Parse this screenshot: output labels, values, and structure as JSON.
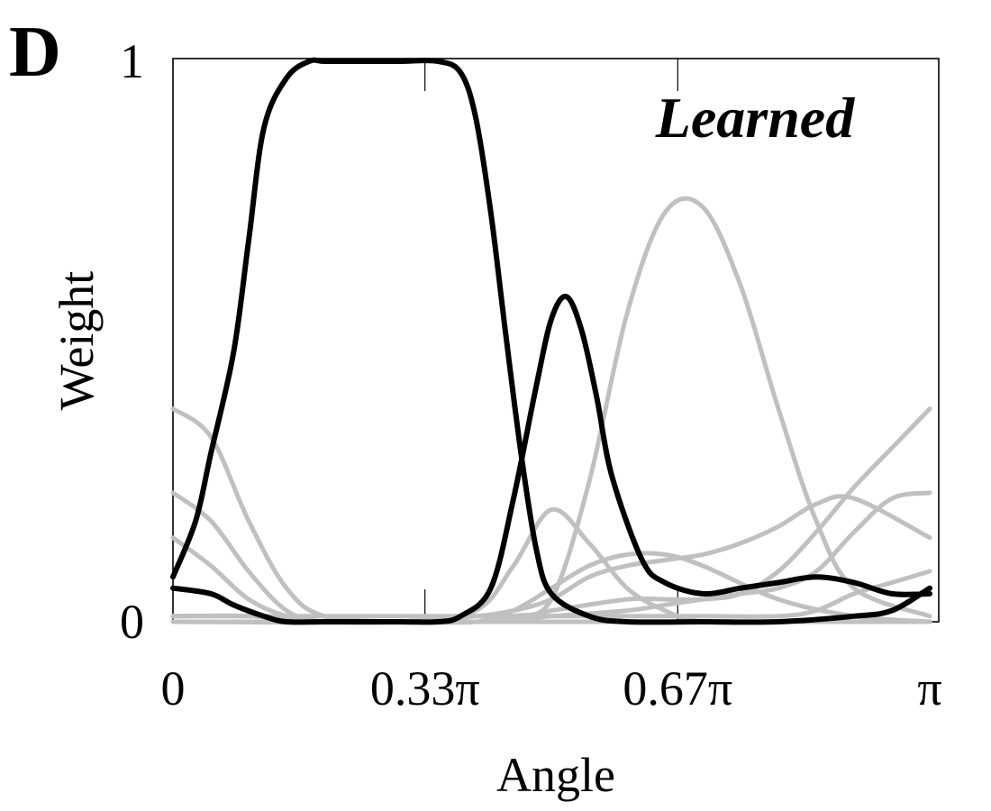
{
  "panel_label": "D",
  "chart_data": {
    "type": "line",
    "title": "Learned",
    "xlabel": "Angle",
    "ylabel": "Weight",
    "xlim": [
      0,
      1
    ],
    "ylim": [
      0,
      1
    ],
    "x_unit": "π",
    "xticks": [
      {
        "value": 0,
        "label": "0"
      },
      {
        "value": 0.333,
        "label": "0.33π"
      },
      {
        "value": 0.667,
        "label": "0.67π"
      },
      {
        "value": 1,
        "label": "π"
      }
    ],
    "yticks": [
      {
        "value": 0,
        "label": "0"
      },
      {
        "value": 1,
        "label": "1"
      }
    ],
    "grid": "vertical gridlines at x ticks",
    "colors": {
      "highlight": "#000000",
      "background": "#c0c0c0"
    },
    "series": [
      {
        "color": "#c0c0c0",
        "x": [
          0,
          0.05,
          0.1,
          0.15,
          0.2,
          0.3,
          0.4,
          0.5,
          0.6,
          0.7,
          0.8,
          0.9,
          1
        ],
        "y": [
          0.38,
          0.33,
          0.18,
          0.06,
          0.01,
          0.0,
          0.0,
          0.0,
          0.0,
          0.0,
          0.0,
          0.0,
          0.0
        ]
      },
      {
        "color": "#c0c0c0",
        "x": [
          0,
          0.05,
          0.1,
          0.15,
          0.2,
          0.3,
          0.4,
          0.5,
          0.6,
          0.7,
          0.8,
          0.9,
          1
        ],
        "y": [
          0.23,
          0.18,
          0.09,
          0.02,
          0.0,
          0.0,
          0.0,
          0.0,
          0.0,
          0.0,
          0.0,
          0.0,
          0.0
        ]
      },
      {
        "color": "#c0c0c0",
        "x": [
          0,
          0.05,
          0.1,
          0.15,
          0.2,
          0.3,
          0.4,
          0.5,
          0.6,
          0.7,
          0.8,
          0.9,
          1
        ],
        "y": [
          0.15,
          0.1,
          0.04,
          0.01,
          0.0,
          0.0,
          0.0,
          0.0,
          0.0,
          0.0,
          0.0,
          0.0,
          0.0
        ]
      },
      {
        "color": "#c0c0c0",
        "x": [
          0,
          0.1,
          0.2,
          0.3,
          0.4,
          0.45,
          0.5,
          0.55,
          0.6,
          0.65,
          0.7,
          0.8,
          0.9,
          1
        ],
        "y": [
          0.01,
          0.01,
          0.0,
          0.0,
          0.02,
          0.1,
          0.2,
          0.14,
          0.06,
          0.02,
          0.0,
          0.0,
          0.0,
          0.0
        ]
      },
      {
        "color": "#c0c0c0",
        "x": [
          0,
          0.1,
          0.2,
          0.3,
          0.4,
          0.45,
          0.5,
          0.55,
          0.6,
          0.65,
          0.7,
          0.8,
          0.9,
          1
        ],
        "y": [
          0.01,
          0.01,
          0.0,
          0.0,
          0.0,
          0.02,
          0.06,
          0.1,
          0.12,
          0.12,
          0.1,
          0.04,
          0.01,
          0.0
        ]
      },
      {
        "color": "#c0c0c0",
        "x": [
          0,
          0.1,
          0.2,
          0.3,
          0.4,
          0.45,
          0.5,
          0.55,
          0.6,
          0.65,
          0.7,
          0.75,
          0.8,
          0.85,
          0.9,
          1
        ],
        "y": [
          0.0,
          0.0,
          0.0,
          0.0,
          0.01,
          0.02,
          0.04,
          0.08,
          0.1,
          0.11,
          0.12,
          0.14,
          0.17,
          0.21,
          0.22,
          0.15
        ]
      },
      {
        "color": "#c0c0c0",
        "x": [
          0,
          0.1,
          0.2,
          0.3,
          0.4,
          0.45,
          0.5,
          0.55,
          0.6,
          0.65,
          0.7,
          0.75,
          0.8,
          0.85,
          0.9,
          1
        ],
        "y": [
          0.0,
          0.0,
          0.0,
          0.0,
          0.0,
          0.01,
          0.04,
          0.25,
          0.55,
          0.73,
          0.74,
          0.6,
          0.38,
          0.18,
          0.06,
          0.01
        ]
      },
      {
        "color": "#c0c0c0",
        "x": [
          0,
          0.4,
          0.5,
          0.6,
          0.65,
          0.7,
          0.75,
          0.8,
          0.85,
          0.9,
          0.95,
          1
        ],
        "y": [
          0.0,
          0.0,
          0.02,
          0.04,
          0.04,
          0.04,
          0.05,
          0.09,
          0.16,
          0.24,
          0.31,
          0.38
        ]
      },
      {
        "color": "#c0c0c0",
        "x": [
          0,
          0.4,
          0.5,
          0.6,
          0.65,
          0.7,
          0.75,
          0.8,
          0.85,
          0.9,
          0.95,
          1
        ],
        "y": [
          0.0,
          0.0,
          0.01,
          0.02,
          0.03,
          0.04,
          0.05,
          0.06,
          0.09,
          0.16,
          0.22,
          0.23
        ]
      },
      {
        "color": "#c0c0c0",
        "x": [
          0,
          0.4,
          0.5,
          0.6,
          0.7,
          0.8,
          0.85,
          0.9,
          0.95,
          1
        ],
        "y": [
          0.01,
          0.01,
          0.01,
          0.01,
          0.01,
          0.01,
          0.02,
          0.05,
          0.07,
          0.09
        ]
      },
      {
        "color": "#000000",
        "x": [
          0,
          0.03,
          0.05,
          0.08,
          0.1,
          0.12,
          0.15,
          0.18,
          0.2,
          0.25,
          0.3,
          0.35,
          0.38,
          0.4,
          0.42,
          0.44,
          0.46,
          0.48,
          0.5,
          0.55,
          0.6,
          0.7,
          0.8,
          0.9,
          0.95,
          1
        ],
        "y": [
          0.08,
          0.18,
          0.3,
          0.48,
          0.68,
          0.88,
          0.97,
          1.0,
          1.0,
          1.0,
          1.0,
          1.0,
          0.98,
          0.9,
          0.73,
          0.51,
          0.3,
          0.13,
          0.05,
          0.01,
          0.0,
          0.0,
          0.0,
          0.01,
          0.02,
          0.06
        ]
      },
      {
        "color": "#000000",
        "x": [
          0,
          0.05,
          0.08,
          0.12,
          0.15,
          0.2,
          0.3,
          0.35,
          0.38,
          0.42,
          0.45,
          0.48,
          0.5,
          0.52,
          0.54,
          0.56,
          0.58,
          0.62,
          0.65,
          0.7,
          0.75,
          0.8,
          0.85,
          0.9,
          0.95,
          1
        ],
        "y": [
          0.06,
          0.05,
          0.03,
          0.01,
          0.0,
          0.0,
          0.0,
          0.0,
          0.01,
          0.06,
          0.22,
          0.42,
          0.54,
          0.58,
          0.52,
          0.4,
          0.26,
          0.11,
          0.07,
          0.05,
          0.06,
          0.07,
          0.08,
          0.07,
          0.05,
          0.05
        ]
      }
    ]
  }
}
